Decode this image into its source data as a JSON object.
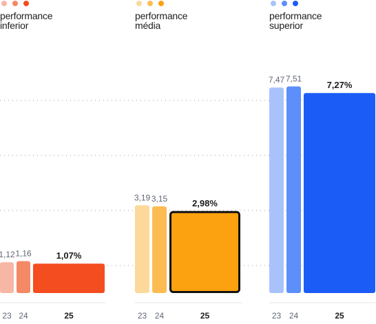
{
  "chart_data": {
    "type": "bar",
    "ylim": [
      0,
      9.0
    ],
    "groups": [
      {
        "title_line1": "performance",
        "title_line2": "inferior",
        "colors": [
          "#f8b6a4",
          "#f58865",
          "#f44d1f"
        ],
        "bars": [
          {
            "category": "23",
            "value": 1.12,
            "label": "1,12"
          },
          {
            "category": "24",
            "value": 1.16,
            "label": "1,16"
          },
          {
            "category": "25",
            "value": 1.07,
            "label": "1,07%",
            "highlight": true
          }
        ]
      },
      {
        "title_line1": "performance",
        "title_line2": "média",
        "colors": [
          "#fcd99b",
          "#fdbc52",
          "#fca10f"
        ],
        "bars": [
          {
            "category": "23",
            "value": 3.19,
            "label": "3,19"
          },
          {
            "category": "24",
            "value": 3.15,
            "label": "3,15"
          },
          {
            "category": "25",
            "value": 2.98,
            "label": "2,98%",
            "highlight": true,
            "outlined": true
          }
        ]
      },
      {
        "title_line1": "performance",
        "title_line2": "superior",
        "colors": [
          "#a9c2fc",
          "#5c8ff9",
          "#1b5cf7"
        ],
        "bars": [
          {
            "category": "23",
            "value": 7.47,
            "label": "7,47"
          },
          {
            "category": "24",
            "value": 7.51,
            "label": "7,51"
          },
          {
            "category": "25",
            "value": 7.27,
            "label": "7,27%",
            "highlight": true
          }
        ]
      }
    ],
    "gridlines": [
      1,
      3,
      5,
      7
    ],
    "grid": true,
    "legend": "none"
  }
}
